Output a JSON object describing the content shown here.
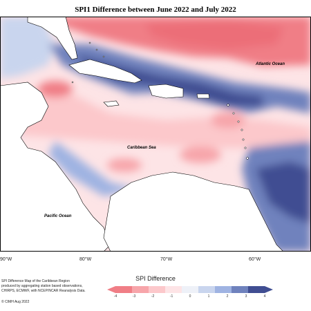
{
  "title": "SPI1 Difference between June 2022 and July 2022",
  "map_labels": {
    "atlantic": "Atlantic Ocean",
    "caribbean": "Caribbean Sea",
    "pacific": "Pacific Ocean"
  },
  "longitudes": [
    "90°W",
    "80°W",
    "70°W",
    "60°W"
  ],
  "legend": {
    "title": "SPI Difference",
    "ticks": [
      "-4",
      "-3",
      "-2",
      "-1",
      "0",
      "1",
      "2",
      "3",
      "4"
    ],
    "colors": [
      "#f07e86",
      "#f7a5aa",
      "#fcc8cb",
      "#fde4e6",
      "#eef1f8",
      "#c9d5ee",
      "#9fb3e2",
      "#6f82bd",
      "#404e92"
    ]
  },
  "credits": {
    "line1": "SPI Difference Map of the Caribbean Region",
    "line2": "produced by aggregating station based observations,",
    "line3": "CHIRPS, ECMWF, with NCEP/NCAR Reanalysis Data.",
    "line4": "© CIMH Aug 2022"
  }
}
